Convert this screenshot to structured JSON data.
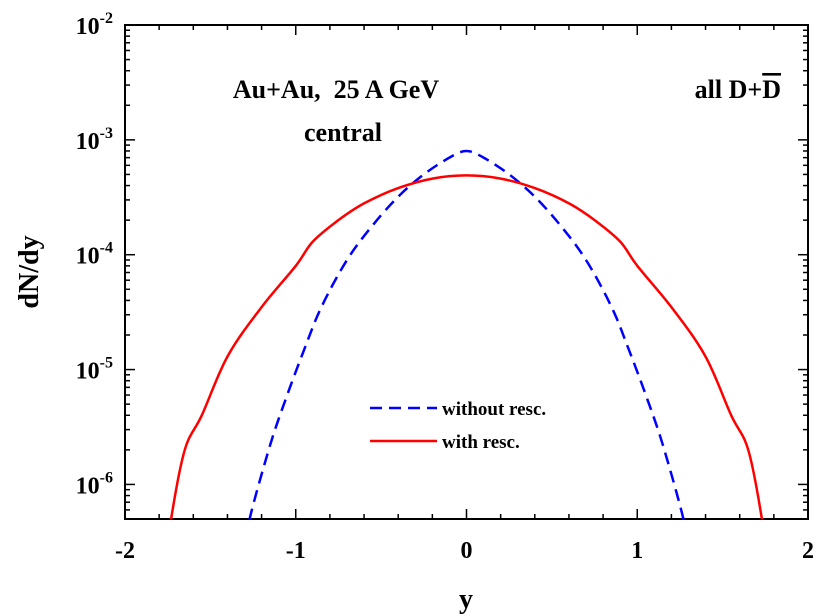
{
  "chart_data": {
    "type": "line",
    "title": "",
    "xlabel": "y",
    "ylabel": "dN/dy",
    "xlim": [
      -2,
      2
    ],
    "ylim": [
      5e-07,
      0.01
    ],
    "yscale": "log",
    "x_ticks": [
      "-2",
      "-1",
      "0",
      "1",
      "2"
    ],
    "y_ticks": [
      {
        "base": "10",
        "exp": "-6",
        "value": 1e-06
      },
      {
        "base": "10",
        "exp": "-5",
        "value": 1e-05
      },
      {
        "base": "10",
        "exp": "-4",
        "value": 0.0001
      },
      {
        "base": "10",
        "exp": "-3",
        "value": 0.001
      },
      {
        "base": "10",
        "exp": "-2",
        "value": 0.01
      }
    ],
    "annotations": {
      "system": "Au+Au,  25 A GeV",
      "centrality": "central",
      "particle_prefix": "all D+",
      "particle_bar": "D"
    },
    "legend_position": "bottom-center",
    "series": [
      {
        "name": "without resc.",
        "color": "#0000ff",
        "dash": "dashed",
        "x": [
          -1.27,
          -1.15,
          -1.05,
          -0.95,
          -0.85,
          -0.7,
          -0.55,
          -0.4,
          -0.25,
          -0.1,
          0,
          0.1,
          0.25,
          0.4,
          0.55,
          0.7,
          0.85,
          0.95,
          1.05,
          1.15,
          1.27
        ],
        "y": [
          5e-07,
          2.2e-06,
          6e-06,
          1.5e-05,
          3.5e-05,
          9e-05,
          0.00018,
          0.00032,
          0.0005,
          0.0007,
          0.0008,
          0.0007,
          0.0005,
          0.00032,
          0.00018,
          9e-05,
          3.5e-05,
          1.5e-05,
          6e-06,
          2.2e-06,
          5e-07
        ]
      },
      {
        "name": "with resc.",
        "color": "#ff0000",
        "dash": "solid",
        "x": [
          -1.73,
          -1.65,
          -1.55,
          -1.4,
          -1.2,
          -1.0,
          -0.9,
          -0.75,
          -0.6,
          -0.4,
          -0.2,
          0,
          0.2,
          0.4,
          0.6,
          0.75,
          0.9,
          1.0,
          1.2,
          1.4,
          1.55,
          1.65,
          1.73
        ],
        "y": [
          5e-07,
          2e-06,
          4e-06,
          1.3e-05,
          3.5e-05,
          8e-05,
          0.00013,
          0.0002,
          0.00028,
          0.00038,
          0.00046,
          0.00049,
          0.00046,
          0.00038,
          0.00028,
          0.0002,
          0.00013,
          8e-05,
          3.5e-05,
          1.3e-05,
          4e-06,
          2e-06,
          5e-07
        ]
      }
    ]
  }
}
